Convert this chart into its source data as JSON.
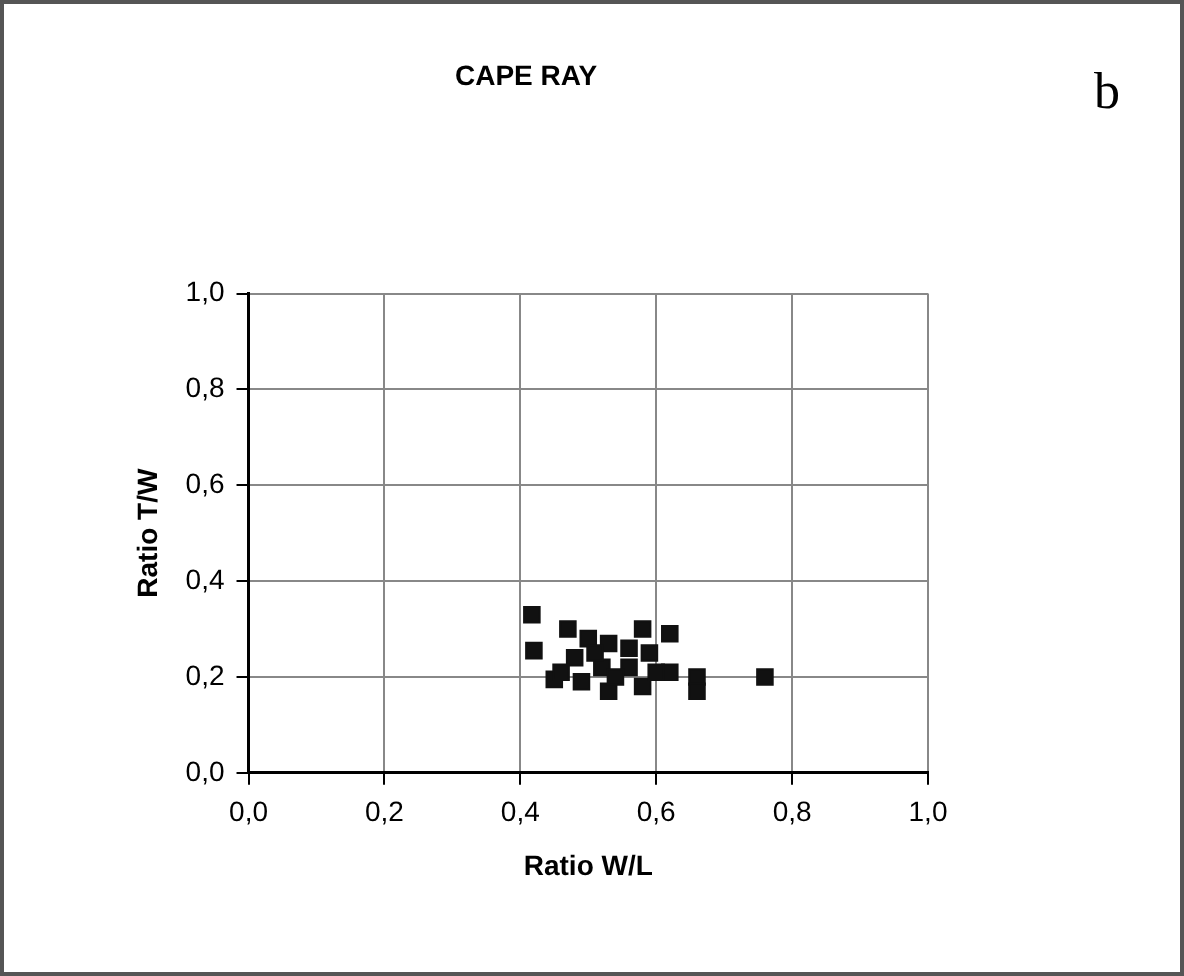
{
  "chart_data": {
    "type": "scatter",
    "title": "CAPE RAY",
    "xlabel": "Ratio W/L",
    "ylabel": "Ratio T/W",
    "annotations": [
      "b"
    ],
    "series": [
      {
        "color": "#111111",
        "x": [
          0.417,
          0.42,
          0.47,
          0.45,
          0.49,
          0.53,
          0.58,
          0.58,
          0.62,
          0.62,
          0.66,
          0.66,
          0.76,
          0.5,
          0.53,
          0.56,
          0.48,
          0.52,
          0.56,
          0.59,
          0.46,
          0.6,
          0.51,
          0.54
        ],
        "values": [
          0.33,
          0.255,
          0.3,
          0.195,
          0.19,
          0.17,
          0.18,
          0.3,
          0.29,
          0.21,
          0.2,
          0.17,
          0.2,
          0.28,
          0.27,
          0.26,
          0.24,
          0.22,
          0.22,
          0.25,
          0.21,
          0.21,
          0.25,
          0.2
        ]
      }
    ],
    "xlim": [
      0,
      1
    ],
    "ylim": [
      0,
      1
    ],
    "xticks": [
      {
        "value": 0,
        "label": "0,0"
      },
      {
        "value": 0.2,
        "label": "0,2"
      },
      {
        "value": 0.4,
        "label": "0,4"
      },
      {
        "value": 0.6,
        "label": "0,6"
      },
      {
        "value": 0.8,
        "label": "0,8"
      },
      {
        "value": 1,
        "label": "1,0"
      }
    ],
    "yticks": [
      {
        "value": 0,
        "label": "0,0"
      },
      {
        "value": 0.2,
        "label": "0,2"
      },
      {
        "value": 0.4,
        "label": "0,4"
      },
      {
        "value": 0.6,
        "label": "0,6"
      },
      {
        "value": 0.8,
        "label": "0,8"
      },
      {
        "value": 1,
        "label": "1,0"
      }
    ],
    "grid": true,
    "marker": "square",
    "legend": false
  }
}
